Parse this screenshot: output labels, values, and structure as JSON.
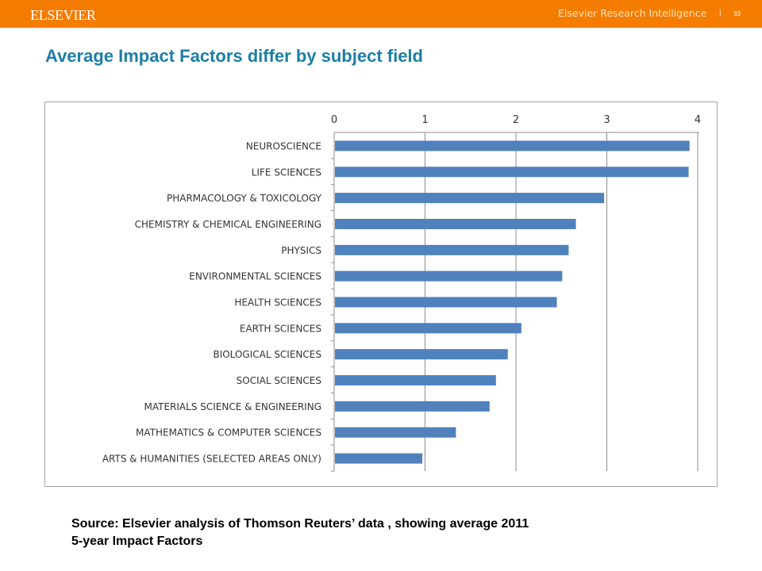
{
  "header": {
    "logo_text": "ELSEVIER",
    "right_title": "Elsevier Research Intelligence",
    "separator": "|",
    "page_number": "33"
  },
  "slide": {
    "title": "Average Impact Factors differ by subject field",
    "source_line1": "Source: Elsevier analysis of Thomson Reuters’ data , showing average 2011",
    "source_line2": "5-year Impact Factors"
  },
  "colors": {
    "header_bg": "#f47c00",
    "title": "#1b7ea4",
    "bar": "#4f81bd"
  },
  "chart_data": {
    "type": "bar",
    "orientation": "horizontal",
    "title": "",
    "xlabel": "",
    "ylabel": "",
    "xlim": [
      0,
      4
    ],
    "x_ticks": [
      "0",
      "1",
      "2",
      "3",
      "4"
    ],
    "x_axis_position": "top",
    "grid": true,
    "categories": [
      "NEUROSCIENCE",
      "LIFE SCIENCES",
      "PHARMACOLOGY & TOXICOLOGY",
      "CHEMISTRY & CHEMICAL ENGINEERING",
      "PHYSICS",
      "ENVIRONMENTAL SCIENCES",
      "HEALTH SCIENCES",
      "EARTH SCIENCES",
      "BIOLOGICAL SCIENCES",
      "SOCIAL SCIENCES",
      "MATERIALS SCIENCE & ENGINEERING",
      "MATHEMATICS & COMPUTER SCIENCES",
      "ARTS & HUMANITIES (SELECTED AREAS ONLY)"
    ],
    "values": [
      3.91,
      3.9,
      2.97,
      2.66,
      2.58,
      2.51,
      2.45,
      2.06,
      1.91,
      1.78,
      1.71,
      1.34,
      0.97
    ]
  }
}
